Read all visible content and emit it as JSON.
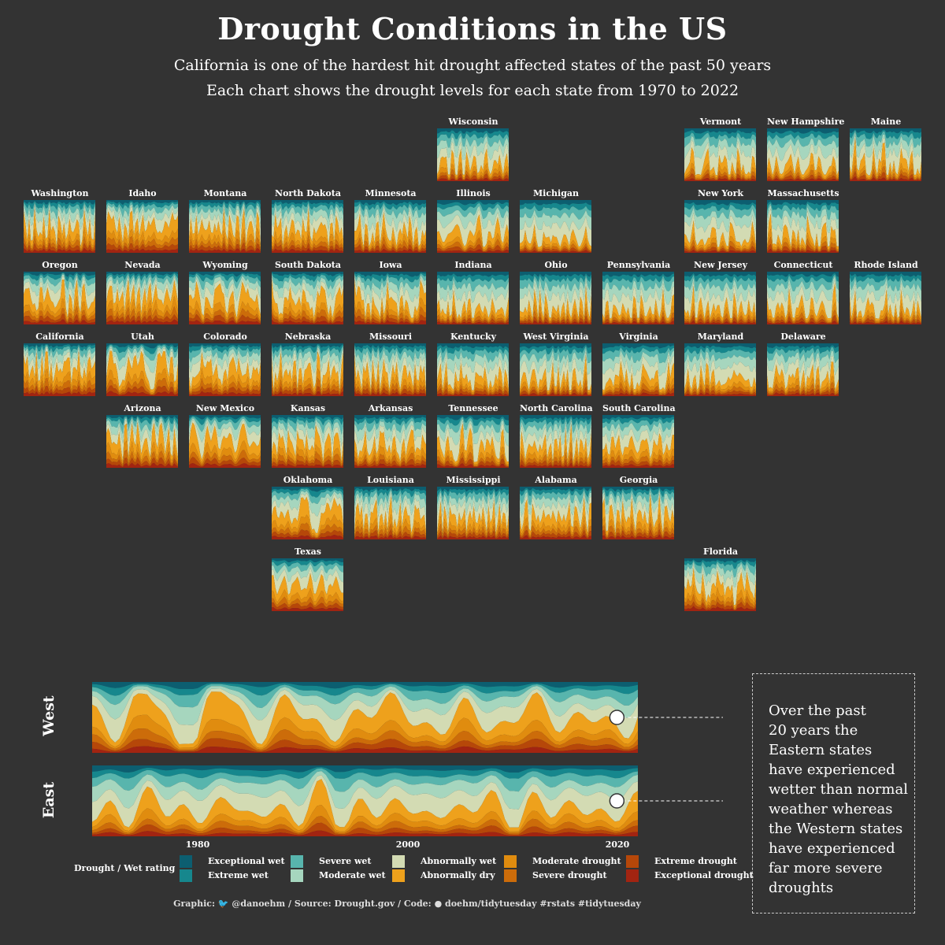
{
  "header": {
    "title": "Drought Conditions in the US",
    "subtitle_line1": "California is one of the hardest hit drought affected states of the past 50 years",
    "subtitle_line2": "Each chart shows the drought levels for each state from 1970 to 2022"
  },
  "colors": {
    "background": "#333333",
    "levels": [
      "#0c5e70",
      "#16878d",
      "#58b5ad",
      "#a6d6be",
      "#d3dbb3",
      "#eea11c",
      "#e08c0f",
      "#cc6c0a",
      "#b64709",
      "#a22411"
    ]
  },
  "chart_data": [
    {
      "type": "area",
      "title": "",
      "xlabel": "",
      "ylabel": "",
      "xlim": [
        1970,
        2022
      ],
      "series_names": [
        "Exceptional wet",
        "Extreme wet",
        "Severe wet",
        "Moderate wet",
        "Abnormally wet",
        "Abnormally dry",
        "Moderate drought",
        "Severe drought",
        "Extreme drought",
        "Exceptional drought"
      ],
      "states": [
        {
          "name": "Wisconsin",
          "row": 0,
          "col": 5,
          "dry": 0.32,
          "seed": 11
        },
        {
          "name": "Vermont",
          "row": 0,
          "col": 8,
          "dry": 0.27,
          "seed": 12
        },
        {
          "name": "New Hampshire",
          "row": 0,
          "col": 9,
          "dry": 0.28,
          "seed": 13
        },
        {
          "name": "Maine",
          "row": 0,
          "col": 10,
          "dry": 0.3,
          "seed": 14
        },
        {
          "name": "Washington",
          "row": 1,
          "col": 0,
          "dry": 0.45,
          "seed": 21
        },
        {
          "name": "Idaho",
          "row": 1,
          "col": 1,
          "dry": 0.52,
          "seed": 22
        },
        {
          "name": "Montana",
          "row": 1,
          "col": 2,
          "dry": 0.48,
          "seed": 23
        },
        {
          "name": "North Dakota",
          "row": 1,
          "col": 3,
          "dry": 0.45,
          "seed": 24
        },
        {
          "name": "Minnesota",
          "row": 1,
          "col": 4,
          "dry": 0.37,
          "seed": 25
        },
        {
          "name": "Illinois",
          "row": 1,
          "col": 5,
          "dry": 0.36,
          "seed": 26
        },
        {
          "name": "Michigan",
          "row": 1,
          "col": 6,
          "dry": 0.25,
          "seed": 27
        },
        {
          "name": "New York",
          "row": 1,
          "col": 8,
          "dry": 0.26,
          "seed": 28
        },
        {
          "name": "Massachusetts",
          "row": 1,
          "col": 9,
          "dry": 0.29,
          "seed": 29
        },
        {
          "name": "Oregon",
          "row": 2,
          "col": 0,
          "dry": 0.5,
          "seed": 31
        },
        {
          "name": "Nevada",
          "row": 2,
          "col": 1,
          "dry": 0.55,
          "seed": 32
        },
        {
          "name": "Wyoming",
          "row": 2,
          "col": 2,
          "dry": 0.5,
          "seed": 33
        },
        {
          "name": "South Dakota",
          "row": 2,
          "col": 3,
          "dry": 0.45,
          "seed": 34
        },
        {
          "name": "Iowa",
          "row": 2,
          "col": 4,
          "dry": 0.38,
          "seed": 35
        },
        {
          "name": "Indiana",
          "row": 2,
          "col": 5,
          "dry": 0.28,
          "seed": 36
        },
        {
          "name": "Ohio",
          "row": 2,
          "col": 6,
          "dry": 0.27,
          "seed": 37
        },
        {
          "name": "Pennsylvania",
          "row": 2,
          "col": 7,
          "dry": 0.26,
          "seed": 38
        },
        {
          "name": "New Jersey",
          "row": 2,
          "col": 8,
          "dry": 0.28,
          "seed": 39
        },
        {
          "name": "Connecticut",
          "row": 2,
          "col": 9,
          "dry": 0.28,
          "seed": 40
        },
        {
          "name": "Rhode Island",
          "row": 2,
          "col": 10,
          "dry": 0.26,
          "seed": 41
        },
        {
          "name": "California",
          "row": 3,
          "col": 0,
          "dry": 0.55,
          "seed": 51
        },
        {
          "name": "Utah",
          "row": 3,
          "col": 1,
          "dry": 0.54,
          "seed": 52
        },
        {
          "name": "Colorado",
          "row": 3,
          "col": 2,
          "dry": 0.5,
          "seed": 53
        },
        {
          "name": "Nebraska",
          "row": 3,
          "col": 3,
          "dry": 0.46,
          "seed": 54
        },
        {
          "name": "Missouri",
          "row": 3,
          "col": 4,
          "dry": 0.4,
          "seed": 55
        },
        {
          "name": "Kentucky",
          "row": 3,
          "col": 5,
          "dry": 0.32,
          "seed": 56
        },
        {
          "name": "West Virginia",
          "row": 3,
          "col": 6,
          "dry": 0.3,
          "seed": 57
        },
        {
          "name": "Virginia",
          "row": 3,
          "col": 7,
          "dry": 0.33,
          "seed": 58
        },
        {
          "name": "Maryland",
          "row": 3,
          "col": 8,
          "dry": 0.33,
          "seed": 59
        },
        {
          "name": "Delaware",
          "row": 3,
          "col": 9,
          "dry": 0.35,
          "seed": 60
        },
        {
          "name": "Arizona",
          "row": 4,
          "col": 1,
          "dry": 0.55,
          "seed": 61
        },
        {
          "name": "New Mexico",
          "row": 4,
          "col": 2,
          "dry": 0.55,
          "seed": 62
        },
        {
          "name": "Kansas",
          "row": 4,
          "col": 3,
          "dry": 0.48,
          "seed": 63
        },
        {
          "name": "Arkansas",
          "row": 4,
          "col": 4,
          "dry": 0.43,
          "seed": 64
        },
        {
          "name": "Tennessee",
          "row": 4,
          "col": 5,
          "dry": 0.37,
          "seed": 65
        },
        {
          "name": "North Carolina",
          "row": 4,
          "col": 6,
          "dry": 0.4,
          "seed": 66
        },
        {
          "name": "South Carolina",
          "row": 4,
          "col": 7,
          "dry": 0.43,
          "seed": 67
        },
        {
          "name": "Oklahoma",
          "row": 5,
          "col": 3,
          "dry": 0.48,
          "seed": 71
        },
        {
          "name": "Louisiana",
          "row": 5,
          "col": 4,
          "dry": 0.43,
          "seed": 72
        },
        {
          "name": "Mississippi",
          "row": 5,
          "col": 5,
          "dry": 0.42,
          "seed": 73
        },
        {
          "name": "Alabama",
          "row": 5,
          "col": 6,
          "dry": 0.44,
          "seed": 74
        },
        {
          "name": "Georgia",
          "row": 5,
          "col": 7,
          "dry": 0.45,
          "seed": 75
        },
        {
          "name": "Texas",
          "row": 6,
          "col": 3,
          "dry": 0.5,
          "seed": 81
        },
        {
          "name": "Florida",
          "row": 6,
          "col": 8,
          "dry": 0.45,
          "seed": 82
        }
      ]
    },
    {
      "type": "area",
      "title": "",
      "xlabel": "",
      "ylabel": "",
      "xlim": [
        1970,
        2022
      ],
      "x_ticks": [
        1980,
        2000,
        2020
      ],
      "regions": [
        {
          "name": "West",
          "dry": 0.5,
          "seed": 101,
          "marker_year": 2020
        },
        {
          "name": "East",
          "dry": 0.38,
          "seed": 102,
          "marker_year": 2020
        }
      ]
    }
  ],
  "legend": {
    "title": "Drought / Wet rating",
    "items": [
      {
        "label": "Exceptional wet",
        "color": "#0c5e70"
      },
      {
        "label": "Extreme wet",
        "color": "#16878d"
      },
      {
        "label": "Severe wet",
        "color": "#58b5ad"
      },
      {
        "label": "Moderate wet",
        "color": "#a6d6be"
      },
      {
        "label": "Abnormally wet",
        "color": "#d3dbb3"
      },
      {
        "label": "Abnormally dry",
        "color": "#eea11c"
      },
      {
        "label": "Moderate drought",
        "color": "#e08c0f"
      },
      {
        "label": "Severe drought",
        "color": "#cc6c0a"
      },
      {
        "label": "Extreme drought",
        "color": "#b64709"
      },
      {
        "label": "Exceptional drought",
        "color": "#a22411"
      }
    ]
  },
  "annotation": {
    "text": "Over the past 20 years the Eastern states have experienced wetter than normal weather whereas the Western states have experienced far more severe droughts",
    "lines": [
      "Over the past",
      "20 years the",
      "Eastern states",
      "have experienced",
      "wetter than normal",
      "weather whereas",
      "the Western states",
      "have experienced",
      "far more severe",
      "droughts"
    ]
  },
  "footer": {
    "caption": "Graphic: 🐦 @danoehm / Source: Drought.gov / Code: ● doehm/tidytuesday #rstats #tidytuesday"
  }
}
